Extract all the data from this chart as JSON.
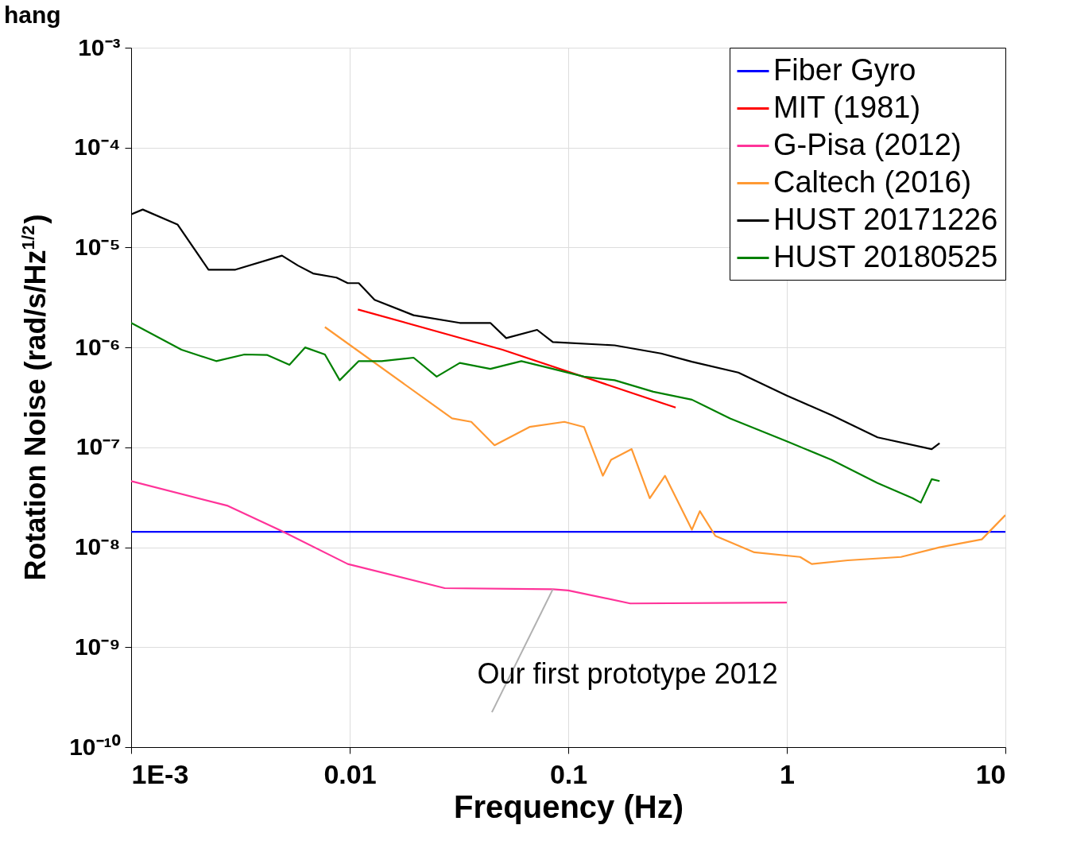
{
  "chart_data": {
    "type": "line",
    "xlabel": "Frequency (Hz)",
    "ylabel": "Rotation Noise (rad/s/Hz$^{1/2}$)",
    "log": "xy",
    "grid": true,
    "legend": "top right",
    "line_style": "solid",
    "marker": "none",
    "xlim": [
      0.001,
      10
    ],
    "xticks": [
      {
        "value": 0.001,
        "label": "1E-3"
      },
      0.01,
      0.1,
      1,
      10
    ],
    "ylim": [
      1e-10,
      0.001
    ],
    "yticks": [
      {
        "value": 1e-10,
        "label": "10⁻¹⁰"
      },
      {
        "value": 1e-09,
        "label": "10⁻⁹"
      },
      {
        "value": 1e-08,
        "label": "10⁻⁸"
      },
      {
        "value": 1e-07,
        "label": "10⁻⁷"
      },
      {
        "value": 1e-06,
        "label": "10⁻⁶"
      },
      {
        "value": 1e-05,
        "label": "10⁻⁵"
      },
      {
        "value": 0.0001,
        "label": "10⁻⁴"
      },
      {
        "value": 0.001,
        "label": "10⁻³"
      }
    ],
    "annotations": [
      "hang",
      {
        "text": "Our first prototype 2012",
        "x": 0.085,
        "y": 3.8e-09
      }
    ],
    "series": [
      {
        "name": "Fiber Gyro",
        "color": "#0000ff",
        "x": [
          0.001,
          10
        ],
        "values": [
          1.43e-08,
          1.43e-08
        ]
      },
      {
        "name": "MIT (1981)",
        "color": "#ff0000",
        "x": [
          0.0109,
          0.05,
          0.31
        ],
        "values": [
          2.4e-06,
          9.5e-07,
          2.5e-07
        ]
      },
      {
        "name": "G-Pisa (2012)",
        "color": "#ff3399",
        "x": [
          0.001,
          0.00277,
          0.0049,
          0.0098,
          0.0272,
          0.085,
          0.1,
          0.192,
          1
        ],
        "values": [
          4.6e-08,
          2.6e-08,
          1.45e-08,
          6.8e-09,
          3.9e-09,
          3.8e-09,
          3.7e-09,
          2.74e-09,
          2.8e-09
        ]
      },
      {
        "name": "Caltech (2016)",
        "color": "#ff9933",
        "x": [
          0.0077,
          0.0294,
          0.036,
          0.046,
          0.0665,
          0.096,
          0.118,
          0.144,
          0.157,
          0.195,
          0.236,
          0.277,
          0.368,
          0.4,
          0.471,
          0.71,
          1.15,
          1.3,
          1.9,
          3.33,
          5,
          7.8,
          10
        ],
        "values": [
          1.6e-06,
          1.95e-07,
          1.8e-07,
          1.05e-07,
          1.6e-07,
          1.8e-07,
          1.6e-07,
          5.2e-08,
          7.5e-08,
          9.6e-08,
          3.1e-08,
          5.2e-08,
          1.5e-08,
          2.3e-08,
          1.3e-08,
          8.9e-09,
          8e-09,
          6.8e-09,
          7.4e-09,
          8e-09,
          1e-08,
          1.2e-08,
          2.1e-08
        ]
      },
      {
        "name": "HUST 20171226",
        "color": "#000000",
        "x": [
          0.001,
          0.00113,
          0.00163,
          0.00226,
          0.003,
          0.0049,
          0.0058,
          0.0068,
          0.0087,
          0.0098,
          0.011,
          0.013,
          0.0196,
          0.0319,
          0.044,
          0.052,
          0.072,
          0.085,
          0.163,
          0.266,
          0.368,
          0.6,
          1.0,
          1.6,
          2.6,
          4.6,
          5
        ],
        "values": [
          2.15e-05,
          2.4e-05,
          1.7e-05,
          6e-06,
          6e-06,
          8.3e-06,
          6.6e-06,
          5.5e-06,
          5e-06,
          4.4e-06,
          4.4e-06,
          3e-06,
          2.1e-06,
          1.76e-06,
          1.76e-06,
          1.24e-06,
          1.5e-06,
          1.13e-06,
          1.05e-06,
          8.7e-07,
          7.2e-07,
          5.6e-07,
          3.3e-07,
          2.1e-07,
          1.26e-07,
          9.6e-08,
          1.1e-07
        ]
      },
      {
        "name": "HUST 20180525",
        "color": "#008000",
        "x": [
          0.001,
          0.0017,
          0.00245,
          0.0033,
          0.0042,
          0.0053,
          0.00625,
          0.0077,
          0.009,
          0.011,
          0.014,
          0.0196,
          0.025,
          0.0319,
          0.044,
          0.061,
          0.085,
          0.118,
          0.163,
          0.245,
          0.368,
          0.55,
          1.0,
          1.6,
          2.6,
          3.76,
          4.1,
          4.6,
          5
        ],
        "values": [
          1.76e-06,
          9.5e-07,
          7.3e-07,
          8.5e-07,
          8.4e-07,
          6.7e-07,
          1e-06,
          8.5e-07,
          4.7e-07,
          7.3e-07,
          7.3e-07,
          7.9e-07,
          5.1e-07,
          7e-07,
          6.1e-07,
          7.3e-07,
          6.1e-07,
          5.1e-07,
          4.7e-07,
          3.6e-07,
          3e-07,
          1.95e-07,
          1.15e-07,
          7.5e-08,
          4.4e-08,
          3.1e-08,
          2.8e-08,
          4.8e-08,
          4.6e-08
        ]
      }
    ]
  }
}
